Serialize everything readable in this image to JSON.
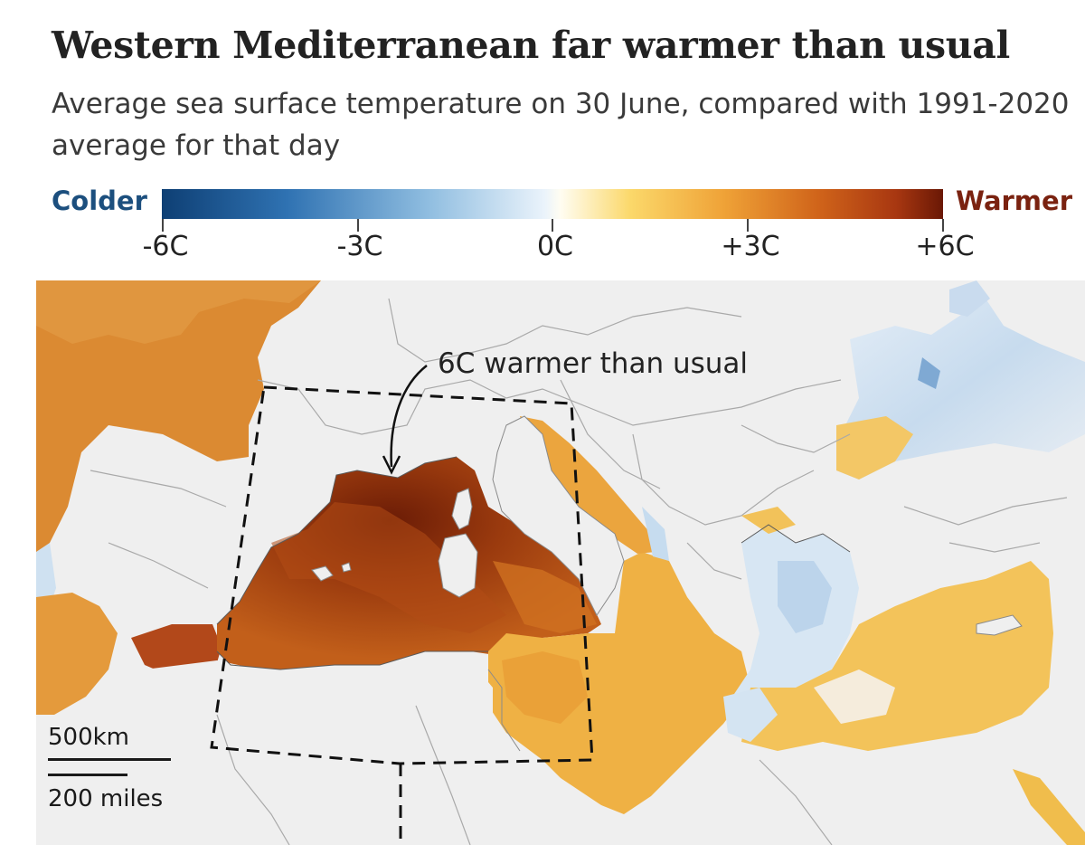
{
  "header": {
    "title": "Western Mediterranean far warmer than usual",
    "subtitle": "Average sea surface temperature on 30 June, compared with 1991-2020 average for that day"
  },
  "legend": {
    "colder_label": "Colder",
    "warmer_label": "Warmer",
    "colder_color": "#1c4f7e",
    "warmer_color": "#7a2210",
    "ticks": [
      "-6C",
      "-3C",
      "0C",
      "+3C",
      "+6C"
    ],
    "range": [
      -6,
      6
    ]
  },
  "map": {
    "region": "Mediterranean Sea",
    "annotation": "6C warmer than usual",
    "highlight_box": "western Mediterranean (dashed outline)",
    "scale": {
      "metric_label": "500km",
      "imperial_label": "200 miles"
    }
  }
}
